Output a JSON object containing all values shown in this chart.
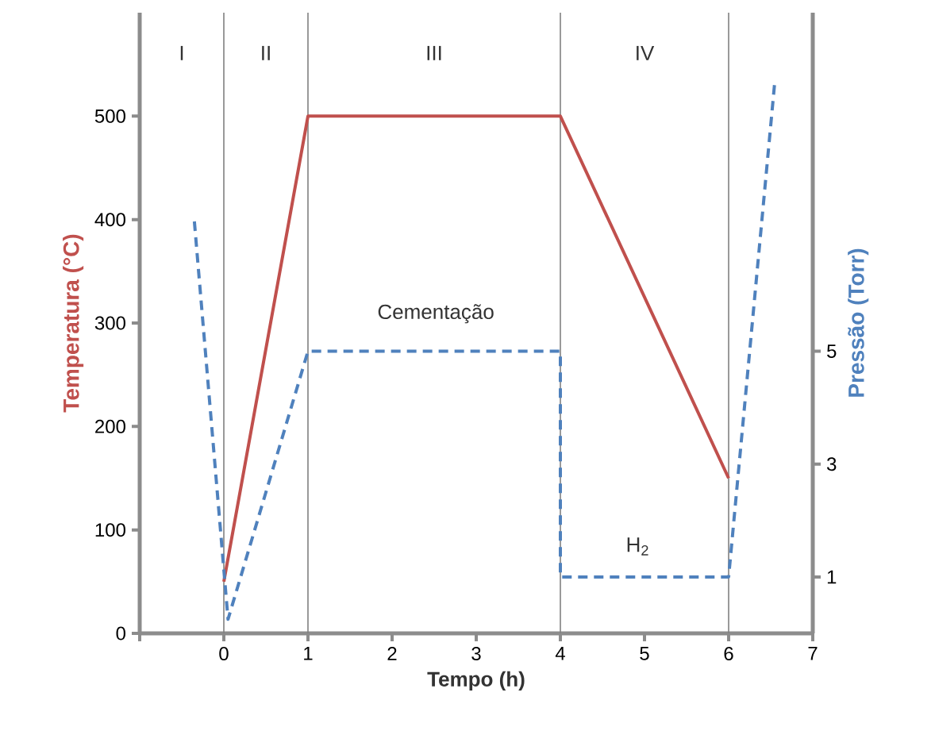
{
  "chart_data": {
    "type": "line",
    "xlabel": "Tempo (h)",
    "ylabel": "Temperatura (°C)",
    "y2label": "Pressão (Torr)",
    "xlim": [
      -1,
      7
    ],
    "xticks": [
      {
        "value": -1,
        "label": null
      },
      0,
      1,
      2,
      3,
      4,
      5,
      6,
      7
    ],
    "ylim": [
      0,
      600
    ],
    "yticks": [
      0,
      100,
      200,
      300,
      400,
      500
    ],
    "y2lim": [
      0,
      11
    ],
    "y2ticks": [
      1,
      3,
      5
    ],
    "series": [
      {
        "color": "#c0504d",
        "x": [
          0,
          1,
          4,
          6
        ],
        "values": [
          50,
          500,
          500,
          150
        ]
      },
      {
        "color": "#4f81bd",
        "axis": "y2",
        "line_style": "dashed",
        "x": [
          -0.35,
          0.05,
          1,
          4,
          4,
          6,
          6.55
        ],
        "values": [
          7.3,
          0.25,
          5,
          5,
          1,
          1,
          9.8
        ]
      }
    ],
    "ref_lines": [
      {
        "axis": "x",
        "value": 0,
        "color": "#808080"
      },
      {
        "axis": "x",
        "value": 1,
        "color": "#808080"
      },
      {
        "axis": "x",
        "value": 4,
        "color": "#808080"
      },
      {
        "axis": "x",
        "value": 6,
        "color": "#808080"
      }
    ],
    "annotations": [
      "I",
      "II",
      "III",
      "IV",
      "Cementação",
      "H$_{2}$"
    ]
  }
}
